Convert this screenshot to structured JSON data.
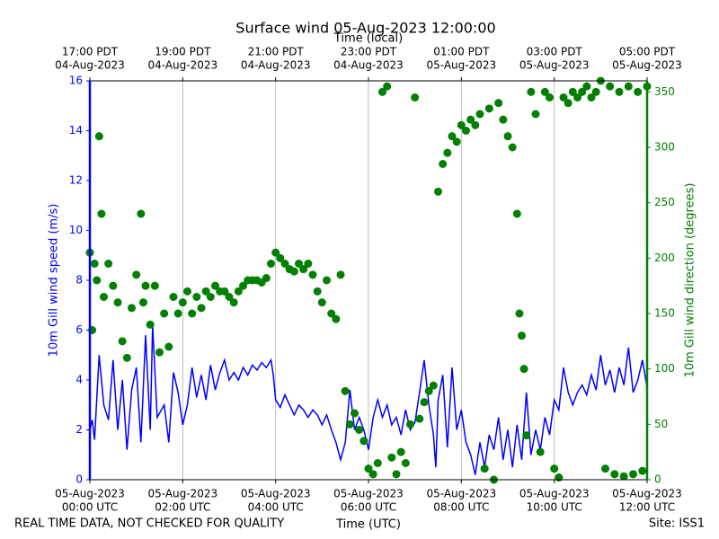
{
  "chart_data": {
    "type": "line",
    "title": "Surface wind 05-Aug-2023 12:00:00",
    "x_label": "Time (UTC)",
    "x2_label": "Time (local)",
    "y_label": "10m Gill wind speed (m/s)",
    "y2_label": "10m Gill wind direction (degrees)",
    "footnote": "REAL TIME DATA, NOT CHECKED FOR QUALITY",
    "site": "Site: ISS1",
    "xlim": [
      0,
      12
    ],
    "xticks": [
      {
        "value": 0,
        "label": [
          "05-Aug-2023",
          "00:00 UTC"
        ]
      },
      {
        "value": 2,
        "label": [
          "05-Aug-2023",
          "02:00 UTC"
        ]
      },
      {
        "value": 4,
        "label": [
          "05-Aug-2023",
          "04:00 UTC"
        ]
      },
      {
        "value": 6,
        "label": [
          "05-Aug-2023",
          "06:00 UTC"
        ]
      },
      {
        "value": 8,
        "label": [
          "05-Aug-2023",
          "08:00 UTC"
        ]
      },
      {
        "value": 10,
        "label": [
          "05-Aug-2023",
          "10:00 UTC"
        ]
      },
      {
        "value": 12,
        "label": [
          "05-Aug-2023",
          "12:00 UTC"
        ]
      }
    ],
    "x2ticks": [
      {
        "value": 0,
        "label": [
          "17:00 PDT",
          "04-Aug-2023"
        ]
      },
      {
        "value": 2,
        "label": [
          "19:00 PDT",
          "04-Aug-2023"
        ]
      },
      {
        "value": 4,
        "label": [
          "21:00 PDT",
          "04-Aug-2023"
        ]
      },
      {
        "value": 6,
        "label": [
          "23:00 PDT",
          "04-Aug-2023"
        ]
      },
      {
        "value": 8,
        "label": [
          "01:00 PDT",
          "05-Aug-2023"
        ]
      },
      {
        "value": 10,
        "label": [
          "03:00 PDT",
          "05-Aug-2023"
        ]
      },
      {
        "value": 12,
        "label": [
          "05:00 PDT",
          "05-Aug-2023"
        ]
      }
    ],
    "ylim": [
      0,
      16
    ],
    "yticks": [
      0,
      2,
      4,
      6,
      8,
      10,
      12,
      14,
      16
    ],
    "y_color": "#0000ff",
    "y2lim": [
      0,
      360
    ],
    "y2ticks": [
      0,
      50,
      100,
      150,
      200,
      250,
      300,
      350
    ],
    "y2_color": "#008000",
    "grid": "x",
    "series": [
      {
        "type": "line",
        "color": "#0000ff",
        "x": [
          0,
          0.05,
          0.1,
          0.2,
          0.3,
          0.4,
          0.5,
          0.6,
          0.7,
          0.8,
          0.9,
          1.0,
          1.1,
          1.2,
          1.3,
          1.35,
          1.45,
          1.6,
          1.7,
          1.8,
          1.9,
          2.0,
          2.1,
          2.2,
          2.3,
          2.4,
          2.5,
          2.6,
          2.7,
          2.8,
          2.9,
          3.0,
          3.1,
          3.2,
          3.3,
          3.4,
          3.5,
          3.6,
          3.7,
          3.8,
          3.9,
          3.95,
          4.0,
          4.1,
          4.2,
          4.3,
          4.4,
          4.5,
          4.6,
          4.7,
          4.8,
          4.9,
          5.0,
          5.1,
          5.2,
          5.3,
          5.4,
          5.5,
          5.6,
          5.7,
          5.8,
          5.9,
          6.0,
          6.1,
          6.2,
          6.3,
          6.4,
          6.5,
          6.6,
          6.7,
          6.8,
          6.9,
          7.0,
          7.1,
          7.2,
          7.3,
          7.4,
          7.45,
          7.5,
          7.6,
          7.7,
          7.8,
          7.9,
          8.0,
          8.1,
          8.2,
          8.3,
          8.4,
          8.5,
          8.6,
          8.7,
          8.8,
          8.9,
          9.0,
          9.1,
          9.2,
          9.3,
          9.4,
          9.5,
          9.6,
          9.7,
          9.8,
          9.9,
          10.0,
          10.1,
          10.2,
          10.3,
          10.4,
          10.5,
          10.6,
          10.7,
          10.8,
          10.9,
          11.0,
          11.1,
          11.2,
          11.3,
          11.4,
          11.5,
          11.6,
          11.7,
          11.8,
          11.9,
          12.0
        ],
        "values": [
          2,
          2.4,
          1.6,
          5.0,
          3.0,
          2.4,
          4.8,
          2.0,
          4.0,
          1.2,
          3.6,
          4.5,
          1.5,
          5.8,
          2.0,
          6.2,
          2.5,
          3.0,
          1.5,
          4.3,
          3.5,
          2.2,
          3.0,
          4.5,
          3.3,
          4.2,
          3.2,
          4.6,
          3.6,
          4.3,
          4.8,
          4.0,
          4.3,
          4.0,
          4.5,
          4.2,
          4.6,
          4.4,
          4.7,
          4.5,
          4.8,
          4.2,
          3.2,
          2.9,
          3.4,
          3.0,
          2.6,
          3.0,
          2.8,
          2.5,
          2.8,
          2.6,
          2.2,
          2.6,
          2.0,
          1.5,
          0.8,
          1.5,
          3.6,
          2.0,
          2.5,
          2.0,
          1.2,
          2.5,
          3.2,
          2.5,
          3.0,
          2.2,
          2.5,
          1.8,
          2.8,
          2.0,
          2.3,
          3.5,
          4.8,
          3.0,
          1.8,
          0.5,
          3.2,
          4.2,
          1.3,
          4.5,
          2.0,
          2.8,
          1.5,
          1.0,
          0.2,
          1.5,
          0.5,
          1.8,
          1.2,
          2.5,
          0.8,
          2.0,
          0.5,
          2.2,
          0.8,
          3.5,
          1.0,
          2.0,
          1.2,
          2.5,
          1.8,
          3.2,
          2.8,
          4.5,
          3.5,
          3.0,
          3.5,
          3.8,
          3.4,
          4.2,
          3.6,
          5.0,
          3.8,
          4.4,
          3.5,
          4.5,
          3.8,
          5.3,
          3.5,
          4.0,
          4.8,
          3.7
        ]
      },
      {
        "type": "scatter",
        "color": "#008000",
        "axis": "y2",
        "x": [
          0,
          0.05,
          0.1,
          0.15,
          0.2,
          0.25,
          0.3,
          0.4,
          0.5,
          0.6,
          0.7,
          0.8,
          0.9,
          1.0,
          1.1,
          1.15,
          1.2,
          1.3,
          1.4,
          1.5,
          1.6,
          1.7,
          1.8,
          1.9,
          2.0,
          2.1,
          2.2,
          2.3,
          2.4,
          2.5,
          2.6,
          2.7,
          2.8,
          2.9,
          3.0,
          3.1,
          3.2,
          3.3,
          3.4,
          3.5,
          3.6,
          3.7,
          3.8,
          3.9,
          4.0,
          4.1,
          4.2,
          4.3,
          4.4,
          4.5,
          4.6,
          4.7,
          4.8,
          4.9,
          5.0,
          5.1,
          5.2,
          5.3,
          5.4,
          5.5,
          5.6,
          5.7,
          5.8,
          5.9,
          6.0,
          6.1,
          6.2,
          6.3,
          6.4,
          6.5,
          6.6,
          6.7,
          6.8,
          6.9,
          7.0,
          7.1,
          7.2,
          7.3,
          7.4,
          7.5,
          7.6,
          7.7,
          7.8,
          7.9,
          8.0,
          8.1,
          8.2,
          8.3,
          8.4,
          8.5,
          8.6,
          8.7,
          8.8,
          8.9,
          9.0,
          9.1,
          9.2,
          9.25,
          9.3,
          9.35,
          9.4,
          9.5,
          9.6,
          9.7,
          9.8,
          9.9,
          10.0,
          10.1,
          10.2,
          10.3,
          10.4,
          10.5,
          10.6,
          10.7,
          10.8,
          10.9,
          11.0,
          11.1,
          11.2,
          11.3,
          11.4,
          11.5,
          11.6,
          11.7,
          11.8,
          11.9,
          12.0
        ],
        "values": [
          205,
          135,
          195,
          180,
          310,
          240,
          165,
          195,
          175,
          160,
          125,
          110,
          155,
          185,
          240,
          160,
          175,
          140,
          175,
          115,
          150,
          120,
          165,
          150,
          160,
          170,
          150,
          165,
          155,
          170,
          165,
          175,
          170,
          170,
          165,
          160,
          170,
          175,
          180,
          180,
          180,
          178,
          182,
          195,
          205,
          200,
          195,
          190,
          188,
          195,
          190,
          195,
          185,
          170,
          160,
          180,
          150,
          145,
          185,
          80,
          50,
          60,
          45,
          35,
          10,
          5,
          15,
          350,
          355,
          20,
          5,
          25,
          15,
          50,
          345,
          55,
          70,
          80,
          85,
          260,
          285,
          295,
          310,
          305,
          320,
          315,
          325,
          320,
          330,
          10,
          335,
          0,
          340,
          325,
          310,
          300,
          240,
          150,
          130,
          100,
          40,
          350,
          330,
          25,
          350,
          345,
          10,
          2,
          345,
          340,
          350,
          345,
          350,
          355,
          345,
          350,
          360,
          10,
          355,
          5,
          350,
          3,
          355,
          5,
          350,
          8,
          355
        ]
      }
    ]
  }
}
